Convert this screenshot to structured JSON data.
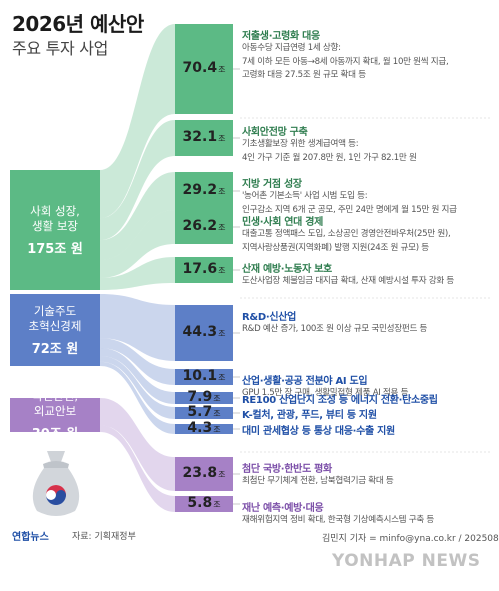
{
  "header": {
    "title": "2026년 예산안",
    "subtitle": "주요 투자 사업"
  },
  "categories": [
    {
      "id": "social",
      "lines": [
        "사회 성장,",
        "생활 보장"
      ],
      "total": "175조 원",
      "color": "#5cba85"
    },
    {
      "id": "tech",
      "lines": [
        "기술주도",
        "초혁신경제"
      ],
      "total": "72조 원",
      "color": "#5d7fc7"
    },
    {
      "id": "safety",
      "lines": [
        "국민안전,",
        "외교안보"
      ],
      "total": "30조 원",
      "color": "#a681c6"
    }
  ],
  "chart_data": {
    "type": "bar",
    "title": "2026년 예산안",
    "subtitle": "주요 투자 사업",
    "unit": "조",
    "categories": [
      "저출생·고령화 대응",
      "사회안전망 구축",
      "지방 거점 성장",
      "민생·사회 연대 경제",
      "산재 예방·노동자 보호",
      "R&D·신산업",
      "산업·생활·공공 전분야 AI 도입",
      "RE100 산업단지 조성 등 에너지 전환·탄소중립",
      "K-컬처, 관광, 푸드, 뷰티 등 지원",
      "대미 관세협상 등 통상 대응·수출 지원",
      "첨단 국방·한반도 평화",
      "재난 예측·예방·대응"
    ],
    "values": [
      70.4,
      32.1,
      29.2,
      26.2,
      17.6,
      44.3,
      10.1,
      7.9,
      5.7,
      4.3,
      23.8,
      5.8
    ],
    "groups": [
      "사회 성장, 생활 보장",
      "사회 성장, 생활 보장",
      "사회 성장, 생활 보장",
      "사회 성장, 생활 보장",
      "사회 성장, 생활 보장",
      "기술주도 초혁신경제",
      "기술주도 초혁신경제",
      "기술주도 초혁신경제",
      "기술주도 초혁신경제",
      "기술주도 초혁신경제",
      "국민안전, 외교안보",
      "국민안전, 외교안보"
    ],
    "group_totals": [
      "175조 원",
      "72조 원",
      "30조 원"
    ]
  },
  "items": [
    {
      "label": "70.4",
      "color": "#5cba85",
      "title": "저출생·고령화 대응",
      "desc": [
        "아동수당 지급연령 1세 상향:",
        "7세 이하 모든 아동→8세 아동까지 확대, 월 10만 원씩 지급,",
        "고령화 대응 27.5조 원 규모 확대 등"
      ]
    },
    {
      "label": "32.1",
      "color": "#5cba85",
      "title": "사회안전망 구축",
      "desc": [
        "기초생활보장 위한 생계급여액 등:",
        "4인 가구 기준 월 207.8만 원, 1인 가구 82.1만 원"
      ]
    },
    {
      "label": "29.2",
      "color": "#5cba85",
      "title": "지방 거점 성장",
      "desc": [
        "'농어촌 기본소득' 사업 시범 도입 등:",
        "인구감소 지역 6개 군 공모, 주민 24만 명에게 월 15만 원 지급"
      ]
    },
    {
      "label": "26.2",
      "color": "#5cba85",
      "title": "민생·사회 연대 경제",
      "desc": [
        "대출고통 정액패스 도입, 소상공인 경영안전바우처(25만 원),",
        "지역사랑상품권(지역화폐) 발행 지원(24조 원 규모) 등"
      ]
    },
    {
      "label": "17.6",
      "color": "#5cba85",
      "title": "산재 예방·노동자 보호",
      "desc": [
        "도산사업장 체불임금 대지급 확대, 산재 예방시설 투자 강화 등"
      ]
    },
    {
      "label": "44.3",
      "color": "#5d7fc7",
      "title": "R&D·신산업",
      "desc": [
        "R&D 예산 증가, 100조 원 이상 규모 국민성장펀드 등"
      ]
    },
    {
      "label": "10.1",
      "color": "#5d7fc7",
      "title": "산업·생활·공공 전분야 AI 도입",
      "desc": [
        "GPU 1.5만 장 구매, 생활밀접형 제품 AI 적용 등"
      ]
    },
    {
      "label": "7.9",
      "color": "#5d7fc7",
      "title": "RE100 산업단지 조성 등 에너지 전환·탄소중립",
      "desc": []
    },
    {
      "label": "5.7",
      "color": "#5d7fc7",
      "title": "K-컬처, 관광, 푸드, 뷰티 등 지원",
      "desc": []
    },
    {
      "label": "4.3",
      "color": "#5d7fc7",
      "title": "대미 관세협상 등 통상 대응·수출 지원",
      "desc": []
    },
    {
      "label": "23.8",
      "color": "#a681c6",
      "title": "첨단 국방·한반도 평화",
      "desc": [
        "최첨단 무기체계 전환, 남북협력기금 확대 등"
      ]
    },
    {
      "label": "5.8",
      "color": "#a681c6",
      "title": "재난 예측·예방·대응",
      "desc": [
        "재해위험지역 정비 확대, 한국형 기상예측시스템 구축 등"
      ]
    }
  ],
  "unit_label": "조",
  "footer": {
    "logo": "연합뉴스",
    "source": "자료: 기획재정부",
    "credit": "김민지 기자 = minfo@yna.co.kr / 20250829",
    "watermark": "YONHAP NEWS"
  }
}
